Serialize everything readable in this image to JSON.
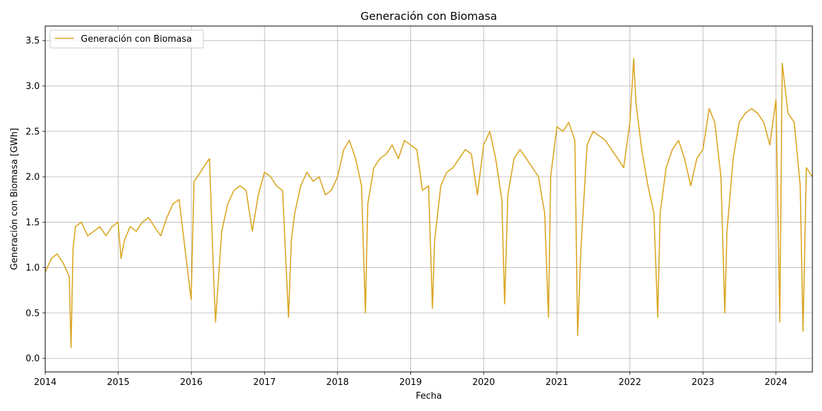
{
  "chart_data": {
    "type": "line",
    "title": "Generación con Biomasa",
    "xlabel": "Fecha",
    "ylabel": "Generación con Biomasa [GWh]",
    "xlim": [
      "2014-01-01",
      "2024-07-01"
    ],
    "ylim": [
      -0.15,
      3.66
    ],
    "x_ticks": [
      "2014",
      "2015",
      "2016",
      "2017",
      "2018",
      "2019",
      "2020",
      "2021",
      "2022",
      "2023",
      "2024"
    ],
    "y_ticks": [
      "0.0",
      "0.5",
      "1.0",
      "1.5",
      "2.0",
      "2.5",
      "3.0",
      "3.5"
    ],
    "grid": true,
    "legend": {
      "position": "top-left",
      "entries": [
        "Generación con Biomasa"
      ]
    },
    "colors": {
      "series": "#daa520"
    },
    "series": [
      {
        "name": "Generación con Biomasa",
        "x": [
          "2014-01-01",
          "2014-02-01",
          "2014-03-01",
          "2014-04-01",
          "2014-05-01",
          "2014-05-10",
          "2014-05-20",
          "2014-06-01",
          "2014-07-01",
          "2014-08-01",
          "2014-09-01",
          "2014-10-01",
          "2014-11-01",
          "2014-12-01",
          "2014-12-31",
          "2015-01-15",
          "2015-02-01",
          "2015-03-01",
          "2015-04-01",
          "2015-05-01",
          "2015-06-01",
          "2015-07-01",
          "2015-08-01",
          "2015-09-01",
          "2015-10-01",
          "2015-11-01",
          "2015-12-01",
          "2015-12-31",
          "2016-01-15",
          "2016-02-01",
          "2016-03-01",
          "2016-04-01",
          "2016-04-20",
          "2016-05-01",
          "2016-06-01",
          "2016-07-01",
          "2016-08-01",
          "2016-09-01",
          "2016-10-01",
          "2016-11-01",
          "2016-12-01",
          "2017-01-01",
          "2017-02-01",
          "2017-03-01",
          "2017-04-01",
          "2017-05-01",
          "2017-05-15",
          "2017-06-01",
          "2017-07-01",
          "2017-08-01",
          "2017-09-01",
          "2017-10-01",
          "2017-11-01",
          "2017-12-01",
          "2018-01-01",
          "2018-02-01",
          "2018-03-01",
          "2018-04-01",
          "2018-05-01",
          "2018-05-20",
          "2018-06-01",
          "2018-07-01",
          "2018-08-01",
          "2018-09-01",
          "2018-10-01",
          "2018-11-01",
          "2018-12-01",
          "2019-01-01",
          "2019-02-01",
          "2019-03-01",
          "2019-04-01",
          "2019-04-20",
          "2019-05-01",
          "2019-06-01",
          "2019-07-01",
          "2019-08-01",
          "2019-09-01",
          "2019-10-01",
          "2019-11-01",
          "2019-12-01",
          "2020-01-01",
          "2020-02-01",
          "2020-03-01",
          "2020-04-01",
          "2020-04-15",
          "2020-05-01",
          "2020-06-01",
          "2020-07-01",
          "2020-08-01",
          "2020-09-01",
          "2020-10-01",
          "2020-11-01",
          "2020-11-20",
          "2020-12-01",
          "2021-01-01",
          "2021-02-01",
          "2021-03-01",
          "2021-04-01",
          "2021-04-15",
          "2021-05-01",
          "2021-06-01",
          "2021-07-01",
          "2021-08-01",
          "2021-09-01",
          "2021-10-01",
          "2021-11-01",
          "2021-12-01",
          "2022-01-01",
          "2022-01-20",
          "2022-02-01",
          "2022-03-01",
          "2022-04-01",
          "2022-05-01",
          "2022-05-20",
          "2022-06-01",
          "2022-07-01",
          "2022-08-01",
          "2022-09-01",
          "2022-10-01",
          "2022-11-01",
          "2022-12-01",
          "2023-01-01",
          "2023-02-01",
          "2023-03-01",
          "2023-04-01",
          "2023-04-20",
          "2023-05-01",
          "2023-06-01",
          "2023-07-01",
          "2023-08-01",
          "2023-09-01",
          "2023-10-01",
          "2023-11-01",
          "2023-12-01",
          "2024-01-01",
          "2024-01-20",
          "2024-02-01",
          "2024-03-01",
          "2024-04-01",
          "2024-05-01",
          "2024-05-15",
          "2024-06-01",
          "2024-06-30"
        ],
        "values": [
          0.95,
          1.1,
          1.15,
          1.05,
          0.9,
          0.12,
          1.2,
          1.45,
          1.5,
          1.35,
          1.4,
          1.45,
          1.35,
          1.45,
          1.5,
          1.1,
          1.3,
          1.45,
          1.4,
          1.5,
          1.55,
          1.45,
          1.35,
          1.55,
          1.7,
          1.75,
          1.2,
          0.65,
          1.95,
          2.0,
          2.1,
          2.2,
          1.0,
          0.4,
          1.4,
          1.7,
          1.85,
          1.9,
          1.85,
          1.4,
          1.8,
          2.05,
          2.0,
          1.9,
          1.85,
          0.45,
          1.3,
          1.6,
          1.9,
          2.05,
          1.95,
          2.0,
          1.8,
          1.85,
          2.0,
          2.3,
          2.4,
          2.2,
          1.9,
          0.5,
          1.7,
          2.1,
          2.2,
          2.25,
          2.35,
          2.2,
          2.4,
          2.35,
          2.3,
          1.85,
          1.9,
          0.55,
          1.3,
          1.9,
          2.05,
          2.1,
          2.2,
          2.3,
          2.25,
          1.8,
          2.35,
          2.5,
          2.2,
          1.75,
          0.6,
          1.8,
          2.2,
          2.3,
          2.2,
          2.1,
          2.0,
          1.6,
          0.45,
          2.0,
          2.55,
          2.5,
          2.6,
          2.4,
          0.25,
          1.2,
          2.35,
          2.5,
          2.45,
          2.4,
          2.3,
          2.2,
          2.1,
          2.6,
          3.3,
          2.8,
          2.3,
          1.9,
          1.6,
          0.45,
          1.6,
          2.1,
          2.3,
          2.4,
          2.2,
          1.9,
          2.2,
          2.3,
          2.75,
          2.6,
          2.0,
          0.5,
          1.4,
          2.2,
          2.6,
          2.7,
          2.75,
          2.7,
          2.6,
          2.35,
          2.85,
          0.4,
          3.25,
          2.7,
          2.6,
          1.9,
          0.3,
          2.1,
          2.0
        ]
      }
    ]
  }
}
